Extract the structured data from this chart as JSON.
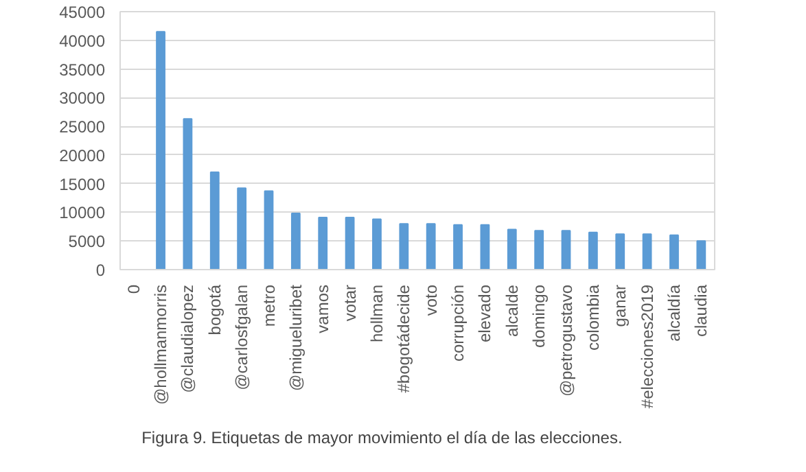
{
  "chart_data": {
    "type": "bar",
    "categories": [
      "0",
      "@hollmanmorris",
      "@claudialopez",
      "bogotá",
      "@carlosfgalan",
      "metro",
      "@migueluribet",
      "vamos",
      "votar",
      "hollman",
      "#bogotádecide",
      "voto",
      "corrupción",
      "elevado",
      "alcalde",
      "domingo",
      "@petrogustavo",
      "colombia",
      "ganar",
      "#elecciones2019",
      "alcaldía",
      "claudia"
    ],
    "values": [
      0,
      41500,
      26300,
      17000,
      14200,
      13700,
      9800,
      9100,
      9100,
      8800,
      8000,
      8000,
      7800,
      7800,
      7000,
      6800,
      6800,
      6500,
      6200,
      6200,
      6000,
      5000
    ],
    "color": "#5b9bd5",
    "ylim": [
      0,
      45000
    ],
    "yticks": [
      0,
      5000,
      10000,
      15000,
      20000,
      25000,
      30000,
      35000,
      40000,
      45000
    ],
    "grid": "y",
    "annotations": [
      "Figura 9. Etiquetas de mayor movimiento el día de las elecciones."
    ]
  }
}
